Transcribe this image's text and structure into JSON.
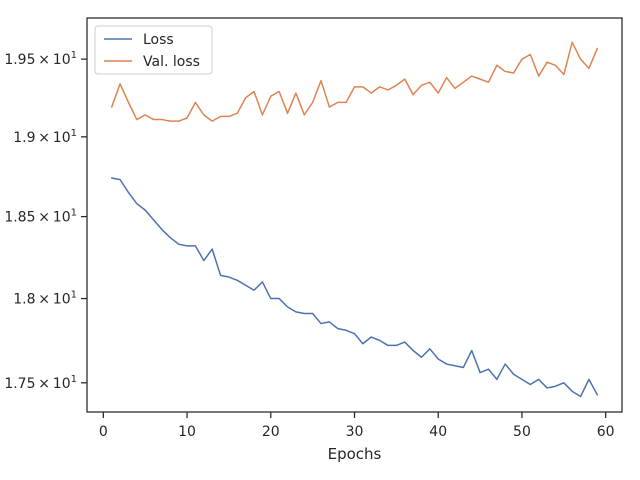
{
  "chart_data": {
    "type": "line",
    "title": "",
    "xlabel": "Epochs",
    "ylabel": "",
    "y_scale": "log",
    "xlim": [
      -1.95,
      61.95
    ],
    "ylim": [
      17.33,
      19.77
    ],
    "x_ticks": [
      0,
      10,
      20,
      30,
      40,
      50,
      60
    ],
    "x_tick_labels": [
      "0",
      "10",
      "20",
      "30",
      "40",
      "50",
      "60"
    ],
    "y_ticks": [
      17.5,
      18.0,
      18.5,
      19.0,
      19.5
    ],
    "y_tick_labels": [
      {
        "mantissa": "1.75",
        "times": "×",
        "base": "10",
        "exp": "1"
      },
      {
        "mantissa": "1.8",
        "times": "×",
        "base": "10",
        "exp": "1"
      },
      {
        "mantissa": "1.85",
        "times": "×",
        "base": "10",
        "exp": "1"
      },
      {
        "mantissa": "1.9",
        "times": "×",
        "base": "10",
        "exp": "1"
      },
      {
        "mantissa": "1.95",
        "times": "×",
        "base": "10",
        "exp": "1"
      }
    ],
    "grid": false,
    "legend_position": "top-left",
    "x": [
      1,
      2,
      3,
      4,
      5,
      6,
      7,
      8,
      9,
      10,
      11,
      12,
      13,
      14,
      15,
      16,
      17,
      18,
      19,
      20,
      21,
      22,
      23,
      24,
      25,
      26,
      27,
      28,
      29,
      30,
      31,
      32,
      33,
      34,
      35,
      36,
      37,
      38,
      39,
      40,
      41,
      42,
      43,
      44,
      45,
      46,
      47,
      48,
      49,
      50,
      51,
      52,
      53,
      54,
      55,
      56,
      57,
      58,
      59
    ],
    "series": [
      {
        "name": "Loss",
        "color": "#4c72b0",
        "values": [
          18.74,
          18.73,
          18.65,
          18.58,
          18.54,
          18.48,
          18.42,
          18.37,
          18.33,
          18.32,
          18.32,
          18.23,
          18.3,
          18.14,
          18.13,
          18.11,
          18.08,
          18.05,
          18.1,
          18.0,
          18.0,
          17.95,
          17.92,
          17.91,
          17.91,
          17.85,
          17.86,
          17.82,
          17.81,
          17.79,
          17.73,
          17.77,
          17.75,
          17.72,
          17.72,
          17.74,
          17.69,
          17.65,
          17.7,
          17.64,
          17.61,
          17.6,
          17.59,
          17.69,
          17.56,
          17.58,
          17.52,
          17.61,
          17.55,
          17.52,
          17.49,
          17.52,
          17.47,
          17.48,
          17.5,
          17.45,
          17.42,
          17.52,
          17.43
        ]
      },
      {
        "name": "Val. loss",
        "color": "#dd8452",
        "values": [
          19.19,
          19.34,
          19.22,
          19.11,
          19.14,
          19.11,
          19.11,
          19.1,
          19.1,
          19.12,
          19.22,
          19.14,
          19.1,
          19.13,
          19.13,
          19.15,
          19.25,
          19.29,
          19.14,
          19.26,
          19.29,
          19.15,
          19.28,
          19.14,
          19.22,
          19.36,
          19.19,
          19.22,
          19.22,
          19.32,
          19.32,
          19.28,
          19.32,
          19.3,
          19.33,
          19.37,
          19.27,
          19.33,
          19.35,
          19.28,
          19.38,
          19.31,
          19.35,
          19.39,
          19.37,
          19.35,
          19.46,
          19.42,
          19.41,
          19.5,
          19.53,
          19.39,
          19.48,
          19.46,
          19.4,
          19.61,
          19.5,
          19.44,
          19.57
        ]
      }
    ]
  }
}
